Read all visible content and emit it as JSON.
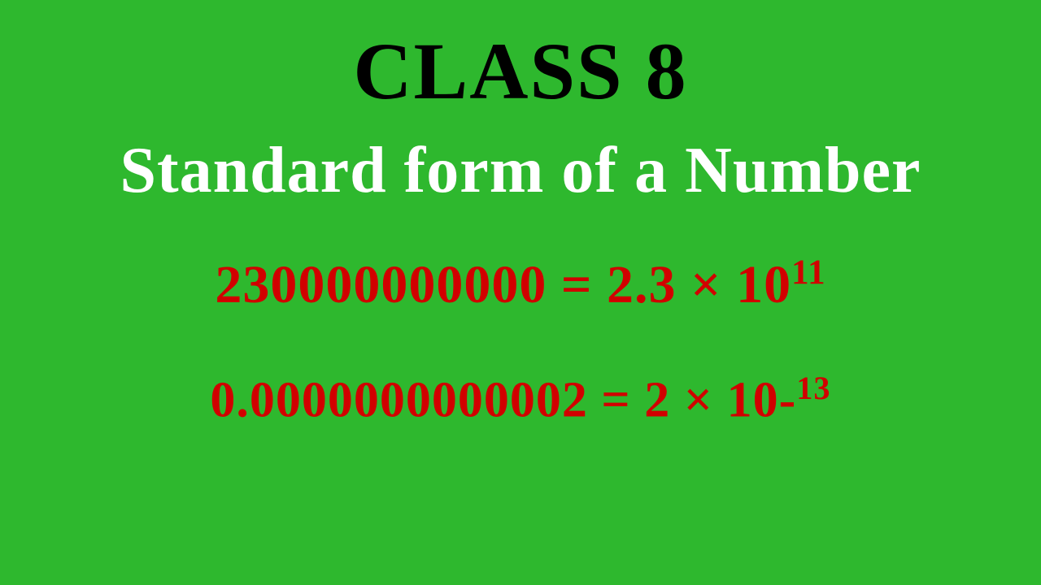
{
  "background_color": "#2eb82e",
  "title": {
    "text": "CLASS 8",
    "color": "#000000",
    "fontsize": 100
  },
  "subtitle": {
    "text": "Standard form of a Number",
    "color": "#ffffff",
    "fontsize": 80
  },
  "equation1": {
    "lhs": "230000000000",
    "rhs_base": "2.3 × 10",
    "rhs_exp": "11",
    "color": "#d10000",
    "fontsize": 66
  },
  "equation2": {
    "lhs": "0.0000000000002",
    "rhs_base": "2 × 10",
    "rhs_exp_prefix": "-",
    "rhs_exp": "13",
    "color": "#d10000",
    "fontsize": 62
  }
}
